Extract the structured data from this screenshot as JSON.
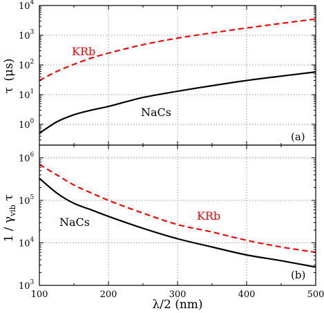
{
  "chart_data": [
    {
      "type": "line",
      "panel_tag": "(a)",
      "ylabel_main": "τ",
      "ylabel_unit": "(μs)",
      "ylim": [
        0.2,
        10000
      ],
      "yscale": "log",
      "xlim": [
        100,
        500
      ],
      "grid": true,
      "yticks": [
        {
          "base": "10",
          "exp": "0",
          "value": 1
        },
        {
          "base": "10",
          "exp": "1",
          "value": 10
        },
        {
          "base": "10",
          "exp": "2",
          "value": 100
        },
        {
          "base": "10",
          "exp": "3",
          "value": 1000
        },
        {
          "base": "10",
          "exp": "4",
          "value": 10000
        }
      ],
      "series": [
        {
          "name": "KRb",
          "color": "#ff0000",
          "style": "dashed",
          "x": [
            100,
            125,
            150,
            175,
            200,
            250,
            300,
            350,
            400,
            450,
            500
          ],
          "y": [
            30,
            60,
            105,
            170,
            250,
            480,
            800,
            1200,
            1750,
            2500,
            3500
          ]
        },
        {
          "name": "NaCs",
          "color": "#000000",
          "style": "solid",
          "x": [
            100,
            125,
            150,
            175,
            200,
            250,
            300,
            350,
            400,
            450,
            500
          ],
          "y": [
            0.5,
            1.2,
            2.1,
            3.0,
            4.0,
            8.0,
            13,
            20,
            30,
            42,
            58
          ]
        }
      ]
    },
    {
      "type": "line",
      "panel_tag": "(b)",
      "ylabel_main": "1 / γ",
      "ylabel_sub": "vib",
      "ylabel_tail": " τ",
      "ylim": [
        1000,
        2000000
      ],
      "yscale": "log",
      "xlim": [
        100,
        500
      ],
      "grid": true,
      "xlabel": "λ/2 (nm)",
      "xticks": [
        "100",
        "200",
        "300",
        "400",
        "500"
      ],
      "yticks": [
        {
          "base": "10",
          "exp": "3",
          "value": 1000
        },
        {
          "base": "10",
          "exp": "4",
          "value": 10000
        },
        {
          "base": "10",
          "exp": "5",
          "value": 100000
        },
        {
          "base": "10",
          "exp": "6",
          "value": 1000000
        }
      ],
      "series": [
        {
          "name": "KRb",
          "color": "#ff0000",
          "style": "dashed",
          "x": [
            100,
            125,
            150,
            175,
            200,
            250,
            300,
            350,
            400,
            450,
            500
          ],
          "y": [
            700000,
            400000,
            230000,
            150000,
            100000,
            50000,
            27000,
            18000,
            11500,
            8000,
            6000
          ]
        },
        {
          "name": "NaCs",
          "color": "#000000",
          "style": "solid",
          "x": [
            100,
            125,
            150,
            175,
            200,
            250,
            300,
            350,
            400,
            450,
            500
          ],
          "y": [
            330000,
            150000,
            85000,
            60000,
            42000,
            22000,
            12500,
            8000,
            5200,
            3800,
            2700
          ]
        }
      ]
    }
  ]
}
